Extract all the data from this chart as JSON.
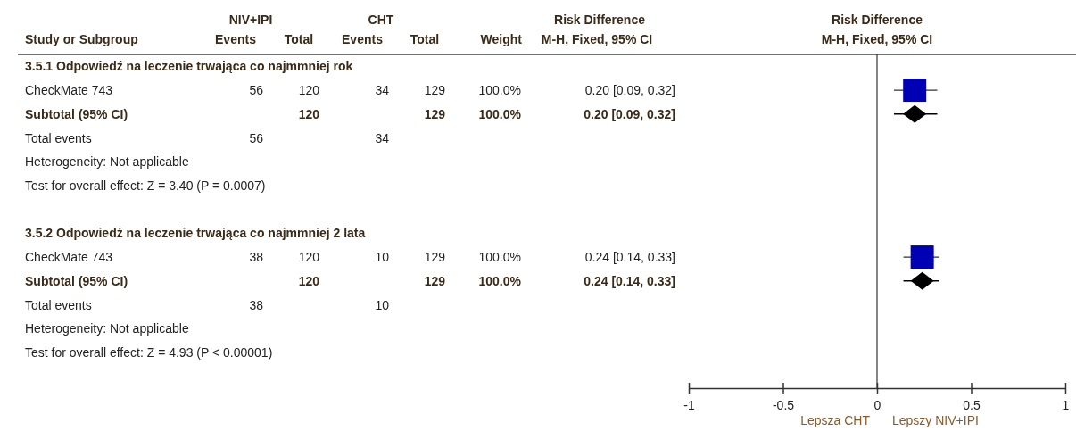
{
  "chart_data": {
    "type": "scatter",
    "orientation": "horizontal",
    "title": "Risk Difference",
    "subtitle": "M-H, Fixed, 95% CI",
    "categories": [
      null,
      null,
      null,
      null,
      null,
      null,
      null,
      null,
      null,
      null,
      null,
      null,
      null,
      null
    ],
    "series": [
      {
        "marker": "square",
        "color": "#0000b4",
        "values": [
          null,
          0.2,
          null,
          null,
          null,
          null,
          null,
          null,
          0.24,
          null,
          null,
          null,
          null,
          null
        ],
        "errors": [
          null,
          [
            0.09,
            0.32
          ],
          null,
          null,
          null,
          null,
          null,
          null,
          [
            0.14,
            0.33
          ],
          null,
          null,
          null,
          null,
          null
        ]
      },
      {
        "marker": "diamond",
        "color": "#000000",
        "values": [
          null,
          null,
          0.2,
          null,
          null,
          null,
          null,
          null,
          null,
          0.24,
          null,
          null,
          null,
          null
        ],
        "errors": [
          null,
          null,
          [
            0.09,
            0.32
          ],
          null,
          null,
          null,
          null,
          null,
          null,
          [
            0.14,
            0.33
          ],
          null,
          null,
          null,
          null
        ]
      }
    ],
    "xlim": [
      -1,
      1
    ],
    "xticks": [
      -1,
      -0.5,
      0,
      0.5,
      1
    ],
    "ref_lines": [
      {
        "axis": "x",
        "value": 0
      }
    ],
    "annotations": [
      "3.5.1 Odpowiedź na leczenie trwająca co najmmniej rok",
      "CheckMate 743",
      "Subtotal (95% CI)",
      "Total events",
      "Heterogeneity: Not applicable",
      "Test for overall effect: Z = 3.40 (P = 0.0007)",
      "3.5.2 Odpowiedź na leczenie trwająca co najmmniej 2 lata",
      "CheckMate 743",
      "Subtotal (95% CI)",
      "Total events",
      "Heterogeneity: Not applicable",
      "Test for overall effect: Z = 4.93 (P < 0.00001)",
      "Study or Subgroup",
      "NIV+IPI",
      "CHT",
      "Risk Difference",
      "Events",
      "Total",
      "Events",
      "Total",
      "Weight",
      "M-H, Fixed, 95% CI",
      "56",
      "120",
      "34",
      "129",
      "100.0%",
      "120",
      "129",
      "100.0%",
      "56",
      "34",
      "38",
      "120",
      "10",
      "129",
      "100.0%",
      "120",
      "129",
      "100.0%",
      "38",
      "10",
      "Lepsza CHT",
      "Lepszy NIV+IPI",
      "0.20 [0.09, 0.32]",
      "0.20 [0.09, 0.32]",
      "0.24 [0.14, 0.33]",
      "0.24 [0.14, 0.33]"
    ]
  }
}
